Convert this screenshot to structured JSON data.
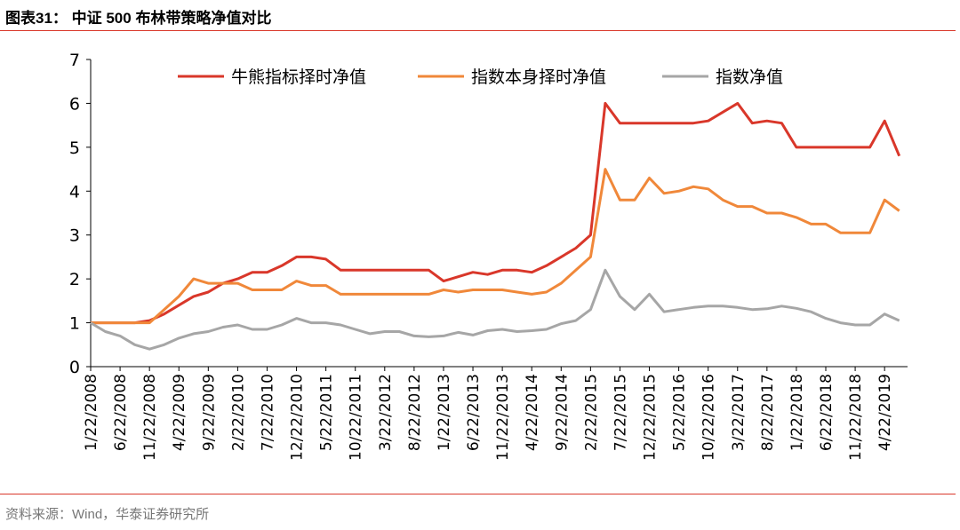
{
  "chart_data": {
    "type": "line",
    "title": "图表31： 中证 500 布林带策略净值对比",
    "source": "资料来源：Wind，华泰证券研究所",
    "categories": [
      "1/22/2008",
      null,
      "6/22/2008",
      null,
      "11/22/2008",
      null,
      "4/22/2009",
      null,
      "9/22/2009",
      null,
      "2/22/2010",
      null,
      "7/22/2010",
      null,
      "12/22/2010",
      null,
      "5/22/2011",
      null,
      "10/22/2011",
      null,
      "3/22/2012",
      null,
      "8/22/2012",
      null,
      "1/22/2013",
      null,
      "6/22/2013",
      null,
      "11/22/2013",
      null,
      "4/22/2014",
      null,
      "9/22/2014",
      null,
      "2/22/2015",
      null,
      "7/22/2015",
      null,
      "12/22/2015",
      null,
      "5/22/2016",
      null,
      "10/22/2016",
      null,
      "3/22/2017",
      null,
      "8/22/2017",
      null,
      "1/22/2018",
      null,
      "6/22/2018",
      null,
      "11/22/2018",
      null,
      "4/22/2019",
      null
    ],
    "ylim": [
      0,
      7
    ],
    "yticks": [
      0,
      1,
      2,
      3,
      4,
      5,
      6,
      7
    ],
    "legend": "top",
    "series": [
      {
        "name": "牛熊指标择时净值",
        "color": "#d9372a",
        "values": [
          1.0,
          1.0,
          1.0,
          1.0,
          1.05,
          1.2,
          1.4,
          1.6,
          1.7,
          1.9,
          2.0,
          2.15,
          2.15,
          2.3,
          2.5,
          2.5,
          2.45,
          2.2,
          2.2,
          2.2,
          2.2,
          2.2,
          2.2,
          2.2,
          1.95,
          2.05,
          2.15,
          2.1,
          2.2,
          2.2,
          2.15,
          2.3,
          2.5,
          2.7,
          3.0,
          6.0,
          5.55,
          5.55,
          5.55,
          5.55,
          5.55,
          5.55,
          5.6,
          5.8,
          6.0,
          5.55,
          5.6,
          5.55,
          5.0,
          5.0,
          5.0,
          5.0,
          5.0,
          5.0,
          5.6,
          4.8
        ]
      },
      {
        "name": "指数本身择时净值",
        "color": "#f0883a",
        "values": [
          1.0,
          1.0,
          1.0,
          1.0,
          1.0,
          1.3,
          1.6,
          2.0,
          1.9,
          1.9,
          1.9,
          1.75,
          1.75,
          1.75,
          1.95,
          1.85,
          1.85,
          1.65,
          1.65,
          1.65,
          1.65,
          1.65,
          1.65,
          1.65,
          1.75,
          1.7,
          1.75,
          1.75,
          1.75,
          1.7,
          1.65,
          1.7,
          1.9,
          2.2,
          2.5,
          4.5,
          3.8,
          3.8,
          4.3,
          3.95,
          4.0,
          4.1,
          4.05,
          3.8,
          3.65,
          3.65,
          3.5,
          3.5,
          3.4,
          3.25,
          3.25,
          3.05,
          3.05,
          3.05,
          3.8,
          3.55
        ]
      },
      {
        "name": "指数净值",
        "color": "#a6a6a6",
        "values": [
          1.0,
          0.8,
          0.7,
          0.5,
          0.4,
          0.5,
          0.65,
          0.75,
          0.8,
          0.9,
          0.95,
          0.85,
          0.85,
          0.95,
          1.1,
          1.0,
          1.0,
          0.95,
          0.85,
          0.75,
          0.8,
          0.8,
          0.7,
          0.68,
          0.7,
          0.78,
          0.72,
          0.82,
          0.85,
          0.8,
          0.82,
          0.85,
          0.98,
          1.05,
          1.3,
          2.2,
          1.6,
          1.3,
          1.65,
          1.25,
          1.3,
          1.35,
          1.38,
          1.38,
          1.35,
          1.3,
          1.32,
          1.38,
          1.33,
          1.25,
          1.1,
          1.0,
          0.95,
          0.95,
          1.2,
          1.05
        ]
      }
    ]
  }
}
